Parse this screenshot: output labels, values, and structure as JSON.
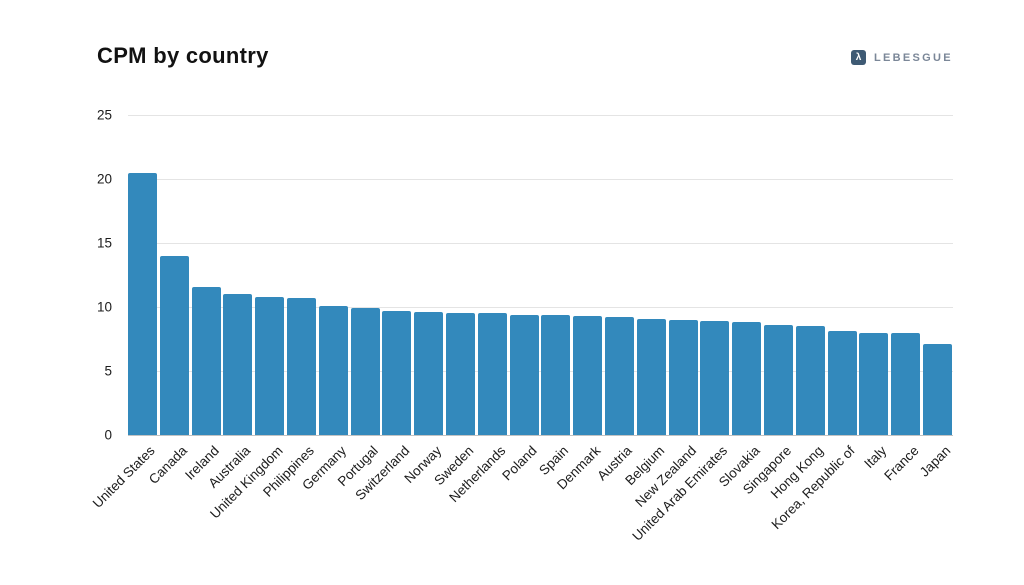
{
  "header": {
    "title": "CPM by country"
  },
  "logo": {
    "icon": "λ",
    "text": "LEBESGUE",
    "icon_bg": "#3e5a74",
    "text_color": "#7b8798"
  },
  "chart_data": {
    "type": "bar",
    "title": "CPM by country",
    "xlabel": "",
    "ylabel": "",
    "categories": [
      "United States",
      "Canada",
      "Ireland",
      "Australia",
      "United Kingdom",
      "Philippines",
      "Germany",
      "Portugal",
      "Switzerland",
      "Norway",
      "Sweden",
      "Netherlands",
      "Poland",
      "Spain",
      "Denmark",
      "Austria",
      "Belgium",
      "New Zealand",
      "United Arab Emirates",
      "Slovakia",
      "Singapore",
      "Hong Kong",
      "Korea, Republic of",
      "Italy",
      "France",
      "Japan"
    ],
    "values": [
      20.5,
      14.0,
      11.6,
      11.0,
      10.8,
      10.7,
      10.1,
      9.9,
      9.7,
      9.6,
      9.5,
      9.5,
      9.4,
      9.4,
      9.3,
      9.2,
      9.1,
      9.0,
      8.9,
      8.8,
      8.6,
      8.5,
      8.1,
      8.0,
      8.0,
      7.1
    ],
    "ylim": [
      0,
      25
    ],
    "yticks": [
      0,
      5,
      10,
      15,
      20,
      25
    ],
    "grid": true,
    "legend": false,
    "bar_color": "#3389bc",
    "grid_color": "#e4e4e4",
    "axis_color": "#c3c3c3",
    "label_color": "#1c1c1c"
  }
}
